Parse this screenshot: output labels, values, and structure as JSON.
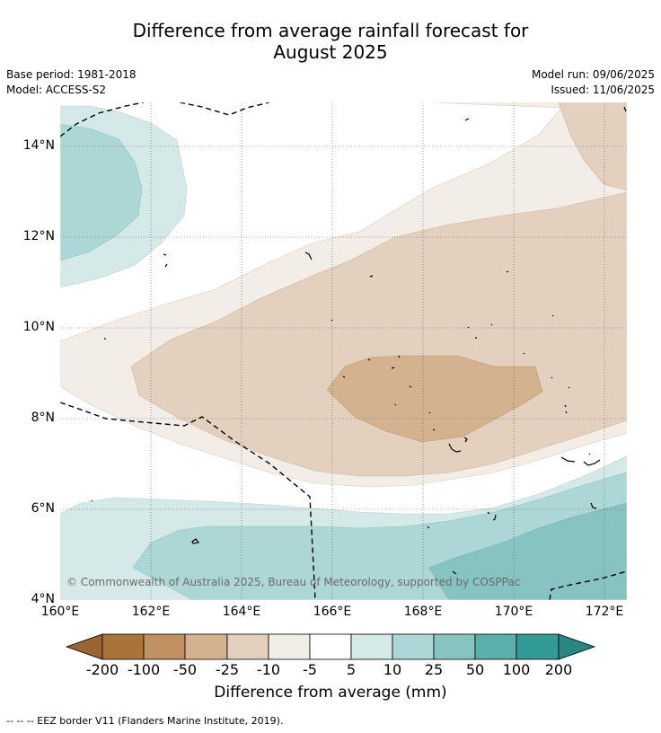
{
  "header": {
    "title_line1": "Difference from average rainfall forecast for",
    "title_line2": "August 2025",
    "base_period": "Base period: 1981-2018",
    "model": "Model: ACCESS-S2",
    "model_run": "Model run: 09/06/2025",
    "issued": "Issued: 11/06/2025"
  },
  "map": {
    "lat_labels": [
      "14°N",
      "12°N",
      "10°N",
      "8°N",
      "6°N",
      "4°N"
    ],
    "lon_labels": [
      "160°E",
      "162°E",
      "164°E",
      "166°E",
      "168°E",
      "170°E",
      "172°E"
    ],
    "copyright": "© Commonwealth of Australia 2025, Bureau of Meteorology, supported by COSPPac"
  },
  "colorbar": {
    "title": "Difference from average (mm)",
    "ticks": [
      "-200",
      "-100",
      "-50",
      "-25",
      "-10",
      "-5",
      "5",
      "10",
      "25",
      "50",
      "100",
      "200"
    ],
    "colors": [
      "#a8743a",
      "#be9062",
      "#d4b28f",
      "#e3d0bf",
      "#f3ede8",
      "#ffffff",
      "#d5e9e8",
      "#add6d6",
      "#86c3c1",
      "#5aaeab",
      "#339a96"
    ],
    "under_color": "#9a6533",
    "over_color": "#2a8583"
  },
  "footer": {
    "legend": "--  --  -- EEZ border V11 (Flanders Marine Institute, 2019)."
  }
}
